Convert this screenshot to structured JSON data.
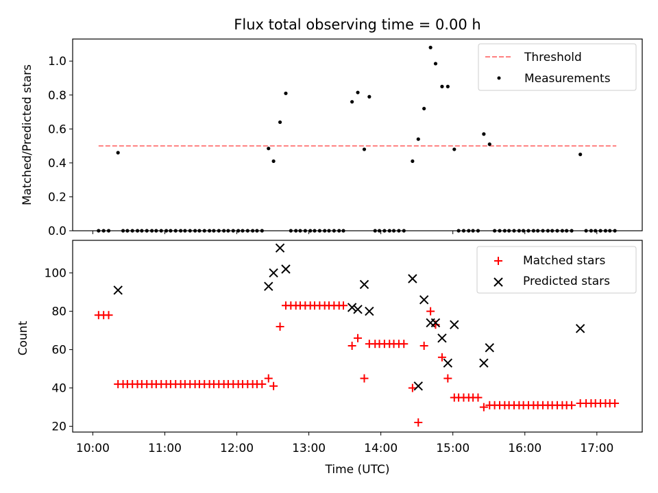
{
  "title": "Flux total observing time = 0.00 h",
  "xlabel": "Time (UTC)",
  "colors": {
    "threshold": "#ff7f7f",
    "measurements": "#000000",
    "matched": "#ff0000",
    "predicted": "#000000"
  },
  "chart_data": [
    {
      "type": "scatter",
      "panel": "top",
      "ylabel": "Matched/Predicted stars",
      "ylim": [
        0,
        1.13
      ],
      "yticks": [
        0.0,
        0.2,
        0.4,
        0.6,
        0.8,
        1.0
      ],
      "ytick_labels": [
        "0.0",
        "0.2",
        "0.4",
        "0.6",
        "0.8",
        "1.0"
      ],
      "xlim": [
        9.72,
        17.63
      ],
      "xticks": [
        10,
        11,
        12,
        13,
        14,
        15,
        16,
        17
      ],
      "legend_position": "top-right",
      "threshold": {
        "name": "Threshold",
        "value": 0.5,
        "x_range": [
          10.08,
          17.27
        ]
      },
      "measurements": {
        "name": "Measurements",
        "points": [
          [
            10.08,
            0
          ],
          [
            10.15,
            0
          ],
          [
            10.22,
            0
          ],
          [
            10.35,
            0.46
          ],
          [
            10.42,
            0
          ],
          [
            10.48,
            0
          ],
          [
            10.55,
            0
          ],
          [
            10.62,
            0
          ],
          [
            10.68,
            0
          ],
          [
            10.75,
            0
          ],
          [
            10.82,
            0
          ],
          [
            10.88,
            0
          ],
          [
            10.95,
            0
          ],
          [
            11.02,
            0
          ],
          [
            11.08,
            0
          ],
          [
            11.15,
            0
          ],
          [
            11.22,
            0
          ],
          [
            11.28,
            0
          ],
          [
            11.35,
            0
          ],
          [
            11.42,
            0
          ],
          [
            11.48,
            0
          ],
          [
            11.55,
            0
          ],
          [
            11.62,
            0
          ],
          [
            11.68,
            0
          ],
          [
            11.75,
            0
          ],
          [
            11.82,
            0
          ],
          [
            11.88,
            0
          ],
          [
            11.95,
            0
          ],
          [
            12.02,
            0
          ],
          [
            12.08,
            0
          ],
          [
            12.15,
            0
          ],
          [
            12.22,
            0
          ],
          [
            12.28,
            0
          ],
          [
            12.35,
            0
          ],
          [
            12.44,
            0.485
          ],
          [
            12.51,
            0.41
          ],
          [
            12.6,
            0.64
          ],
          [
            12.68,
            0.81
          ],
          [
            12.75,
            0
          ],
          [
            12.82,
            0
          ],
          [
            12.88,
            0
          ],
          [
            12.95,
            0
          ],
          [
            13.02,
            0
          ],
          [
            13.08,
            0
          ],
          [
            13.15,
            0
          ],
          [
            13.22,
            0
          ],
          [
            13.28,
            0
          ],
          [
            13.35,
            0
          ],
          [
            13.42,
            0
          ],
          [
            13.48,
            0
          ],
          [
            13.6,
            0.76
          ],
          [
            13.68,
            0.815
          ],
          [
            13.77,
            0.48
          ],
          [
            13.84,
            0.79
          ],
          [
            13.92,
            0
          ],
          [
            13.98,
            0
          ],
          [
            14.05,
            0
          ],
          [
            14.12,
            0
          ],
          [
            14.18,
            0
          ],
          [
            14.25,
            0
          ],
          [
            14.32,
            0
          ],
          [
            14.44,
            0.41
          ],
          [
            14.52,
            0.54
          ],
          [
            14.6,
            0.72
          ],
          [
            14.69,
            1.08
          ],
          [
            14.76,
            0.985
          ],
          [
            14.85,
            0.85
          ],
          [
            14.93,
            0.85
          ],
          [
            15.02,
            0.48
          ],
          [
            15.08,
            0
          ],
          [
            15.15,
            0
          ],
          [
            15.22,
            0
          ],
          [
            15.28,
            0
          ],
          [
            15.35,
            0
          ],
          [
            15.43,
            0.57
          ],
          [
            15.51,
            0.51
          ],
          [
            15.58,
            0
          ],
          [
            15.65,
            0
          ],
          [
            15.72,
            0
          ],
          [
            15.78,
            0
          ],
          [
            15.85,
            0
          ],
          [
            15.92,
            0
          ],
          [
            15.98,
            0
          ],
          [
            16.05,
            0
          ],
          [
            16.12,
            0
          ],
          [
            16.18,
            0
          ],
          [
            16.25,
            0
          ],
          [
            16.32,
            0
          ],
          [
            16.38,
            0
          ],
          [
            16.45,
            0
          ],
          [
            16.52,
            0
          ],
          [
            16.58,
            0
          ],
          [
            16.65,
            0
          ],
          [
            16.77,
            0.45
          ],
          [
            16.85,
            0
          ],
          [
            16.92,
            0
          ],
          [
            16.98,
            0
          ],
          [
            17.05,
            0
          ],
          [
            17.12,
            0
          ],
          [
            17.18,
            0
          ],
          [
            17.25,
            0
          ]
        ]
      }
    },
    {
      "type": "scatter",
      "panel": "bottom",
      "ylabel": "Count",
      "ylim": [
        17,
        117
      ],
      "yticks": [
        20,
        40,
        60,
        80,
        100
      ],
      "ytick_labels": [
        "20",
        "40",
        "60",
        "80",
        "100"
      ],
      "xlim": [
        9.72,
        17.63
      ],
      "xticks": [
        10,
        11,
        12,
        13,
        14,
        15,
        16,
        17
      ],
      "xtick_labels": [
        "10:00",
        "11:00",
        "12:00",
        "13:00",
        "14:00",
        "15:00",
        "16:00",
        "17:00"
      ],
      "legend_position": "top-right",
      "matched": {
        "name": "Matched stars",
        "points": [
          [
            10.08,
            78
          ],
          [
            10.15,
            78
          ],
          [
            10.22,
            78
          ],
          [
            10.35,
            42
          ],
          [
            10.42,
            42
          ],
          [
            10.48,
            42
          ],
          [
            10.55,
            42
          ],
          [
            10.62,
            42
          ],
          [
            10.68,
            42
          ],
          [
            10.75,
            42
          ],
          [
            10.82,
            42
          ],
          [
            10.88,
            42
          ],
          [
            10.95,
            42
          ],
          [
            11.02,
            42
          ],
          [
            11.08,
            42
          ],
          [
            11.15,
            42
          ],
          [
            11.22,
            42
          ],
          [
            11.28,
            42
          ],
          [
            11.35,
            42
          ],
          [
            11.42,
            42
          ],
          [
            11.48,
            42
          ],
          [
            11.55,
            42
          ],
          [
            11.62,
            42
          ],
          [
            11.68,
            42
          ],
          [
            11.75,
            42
          ],
          [
            11.82,
            42
          ],
          [
            11.88,
            42
          ],
          [
            11.95,
            42
          ],
          [
            12.02,
            42
          ],
          [
            12.08,
            42
          ],
          [
            12.15,
            42
          ],
          [
            12.22,
            42
          ],
          [
            12.28,
            42
          ],
          [
            12.35,
            42
          ],
          [
            12.44,
            45
          ],
          [
            12.51,
            41
          ],
          [
            12.6,
            72
          ],
          [
            12.68,
            83
          ],
          [
            12.75,
            83
          ],
          [
            12.82,
            83
          ],
          [
            12.88,
            83
          ],
          [
            12.95,
            83
          ],
          [
            13.02,
            83
          ],
          [
            13.08,
            83
          ],
          [
            13.15,
            83
          ],
          [
            13.22,
            83
          ],
          [
            13.28,
            83
          ],
          [
            13.35,
            83
          ],
          [
            13.42,
            83
          ],
          [
            13.48,
            83
          ],
          [
            13.6,
            62
          ],
          [
            13.68,
            66
          ],
          [
            13.77,
            45
          ],
          [
            13.84,
            63
          ],
          [
            13.92,
            63
          ],
          [
            13.98,
            63
          ],
          [
            14.05,
            63
          ],
          [
            14.12,
            63
          ],
          [
            14.18,
            63
          ],
          [
            14.25,
            63
          ],
          [
            14.32,
            63
          ],
          [
            14.44,
            40
          ],
          [
            14.52,
            22
          ],
          [
            14.6,
            62
          ],
          [
            14.69,
            80
          ],
          [
            14.76,
            73
          ],
          [
            14.85,
            56
          ],
          [
            14.93,
            45
          ],
          [
            15.02,
            35
          ],
          [
            15.08,
            35
          ],
          [
            15.15,
            35
          ],
          [
            15.22,
            35
          ],
          [
            15.28,
            35
          ],
          [
            15.35,
            35
          ],
          [
            15.43,
            30
          ],
          [
            15.51,
            31
          ],
          [
            15.58,
            31
          ],
          [
            15.65,
            31
          ],
          [
            15.72,
            31
          ],
          [
            15.78,
            31
          ],
          [
            15.85,
            31
          ],
          [
            15.92,
            31
          ],
          [
            15.98,
            31
          ],
          [
            16.05,
            31
          ],
          [
            16.12,
            31
          ],
          [
            16.18,
            31
          ],
          [
            16.25,
            31
          ],
          [
            16.32,
            31
          ],
          [
            16.38,
            31
          ],
          [
            16.45,
            31
          ],
          [
            16.52,
            31
          ],
          [
            16.58,
            31
          ],
          [
            16.65,
            31
          ],
          [
            16.77,
            32
          ],
          [
            16.85,
            32
          ],
          [
            16.92,
            32
          ],
          [
            16.98,
            32
          ],
          [
            17.05,
            32
          ],
          [
            17.12,
            32
          ],
          [
            17.18,
            32
          ],
          [
            17.25,
            32
          ]
        ]
      },
      "predicted": {
        "name": "Predicted stars",
        "points": [
          [
            10.35,
            91
          ],
          [
            12.44,
            93
          ],
          [
            12.51,
            100
          ],
          [
            12.6,
            113
          ],
          [
            12.68,
            102
          ],
          [
            13.6,
            82
          ],
          [
            13.68,
            81
          ],
          [
            13.77,
            94
          ],
          [
            13.84,
            80
          ],
          [
            14.44,
            97
          ],
          [
            14.52,
            41
          ],
          [
            14.6,
            86
          ],
          [
            14.69,
            74
          ],
          [
            14.76,
            74
          ],
          [
            14.85,
            66
          ],
          [
            14.93,
            53
          ],
          [
            15.02,
            73
          ],
          [
            15.43,
            53
          ],
          [
            15.51,
            61
          ],
          [
            16.77,
            71
          ]
        ]
      }
    }
  ]
}
